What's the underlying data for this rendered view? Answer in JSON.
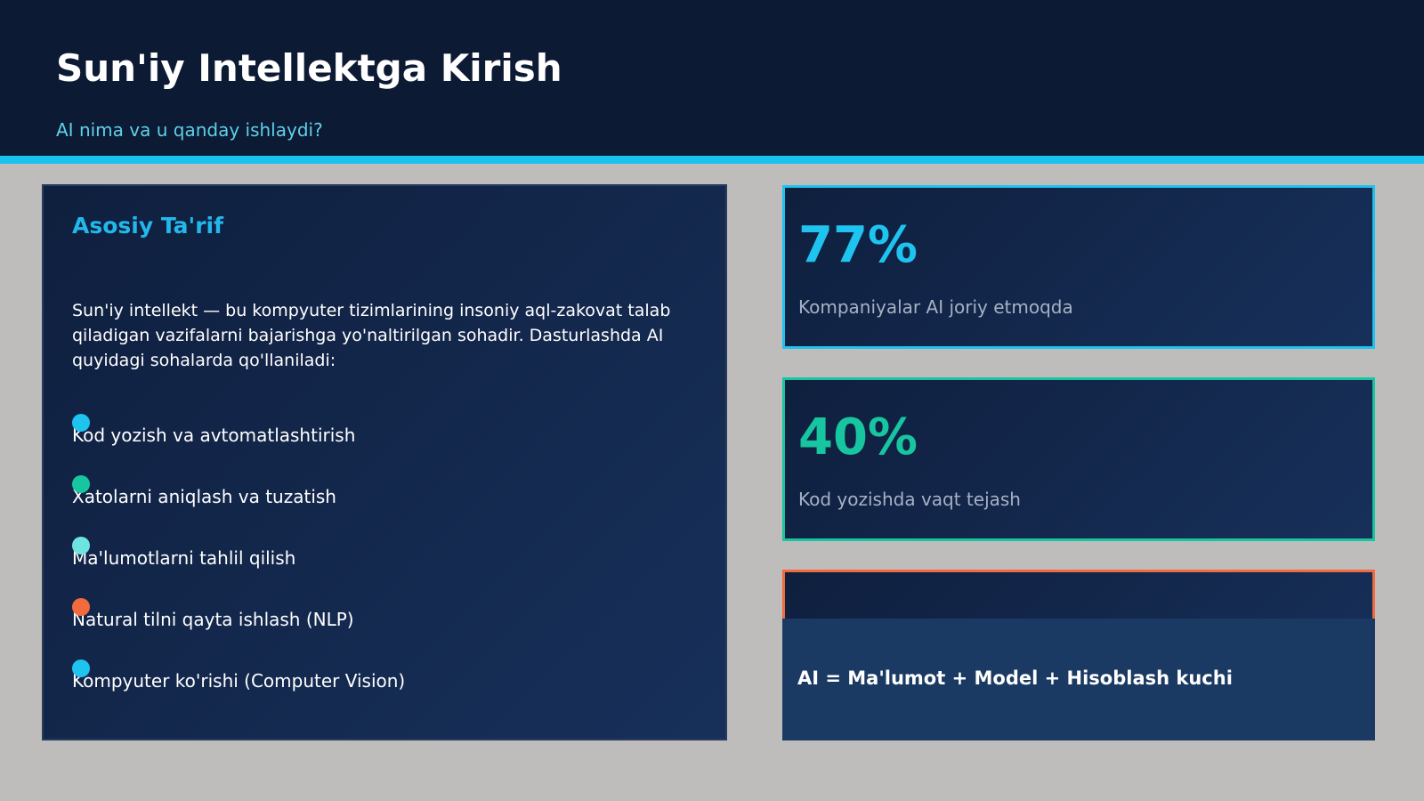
{
  "header": {
    "title": "Sun'iy Intellektga Kirish",
    "subtitle": "AI nima va u qanday ishlaydi?"
  },
  "definition": {
    "heading": "Asosiy Ta'rif",
    "text": "Sun'iy intellekt — bu kompyuter tizimlarining insoniy aql-zakovat talab qiladigan vazifalarni bajarishga yo'naltirilgan sohadir. Dasturlashda AI quyidagi sohalarda qo'llaniladi:",
    "items": [
      {
        "label": "Kod yozish va avtomatlashtirish",
        "color": "#1ec3f0"
      },
      {
        "label": "Xatolarni aniqlash va tuzatish",
        "color": "#17c6a0"
      },
      {
        "label": "Ma'lumotlarni tahlil qilish",
        "color": "#6fe3e0"
      },
      {
        "label": "Natural tilni qayta ishlash (NLP)",
        "color": "#f26a3d"
      },
      {
        "label": "Kompyuter ko'rishi (Computer Vision)",
        "color": "#1ec3f0"
      }
    ]
  },
  "stats": [
    {
      "value": "77%",
      "label": "Kompaniyalar AI joriy etmoqda",
      "color": "#1ec3f0"
    },
    {
      "value": "40%",
      "label": "Kod yozishda vaqt tejash",
      "color": "#17c6a0"
    },
    {
      "color": "#f26a3d"
    }
  ],
  "formula": "AI = Ma'lumot + Model + Hisoblash kuchi"
}
